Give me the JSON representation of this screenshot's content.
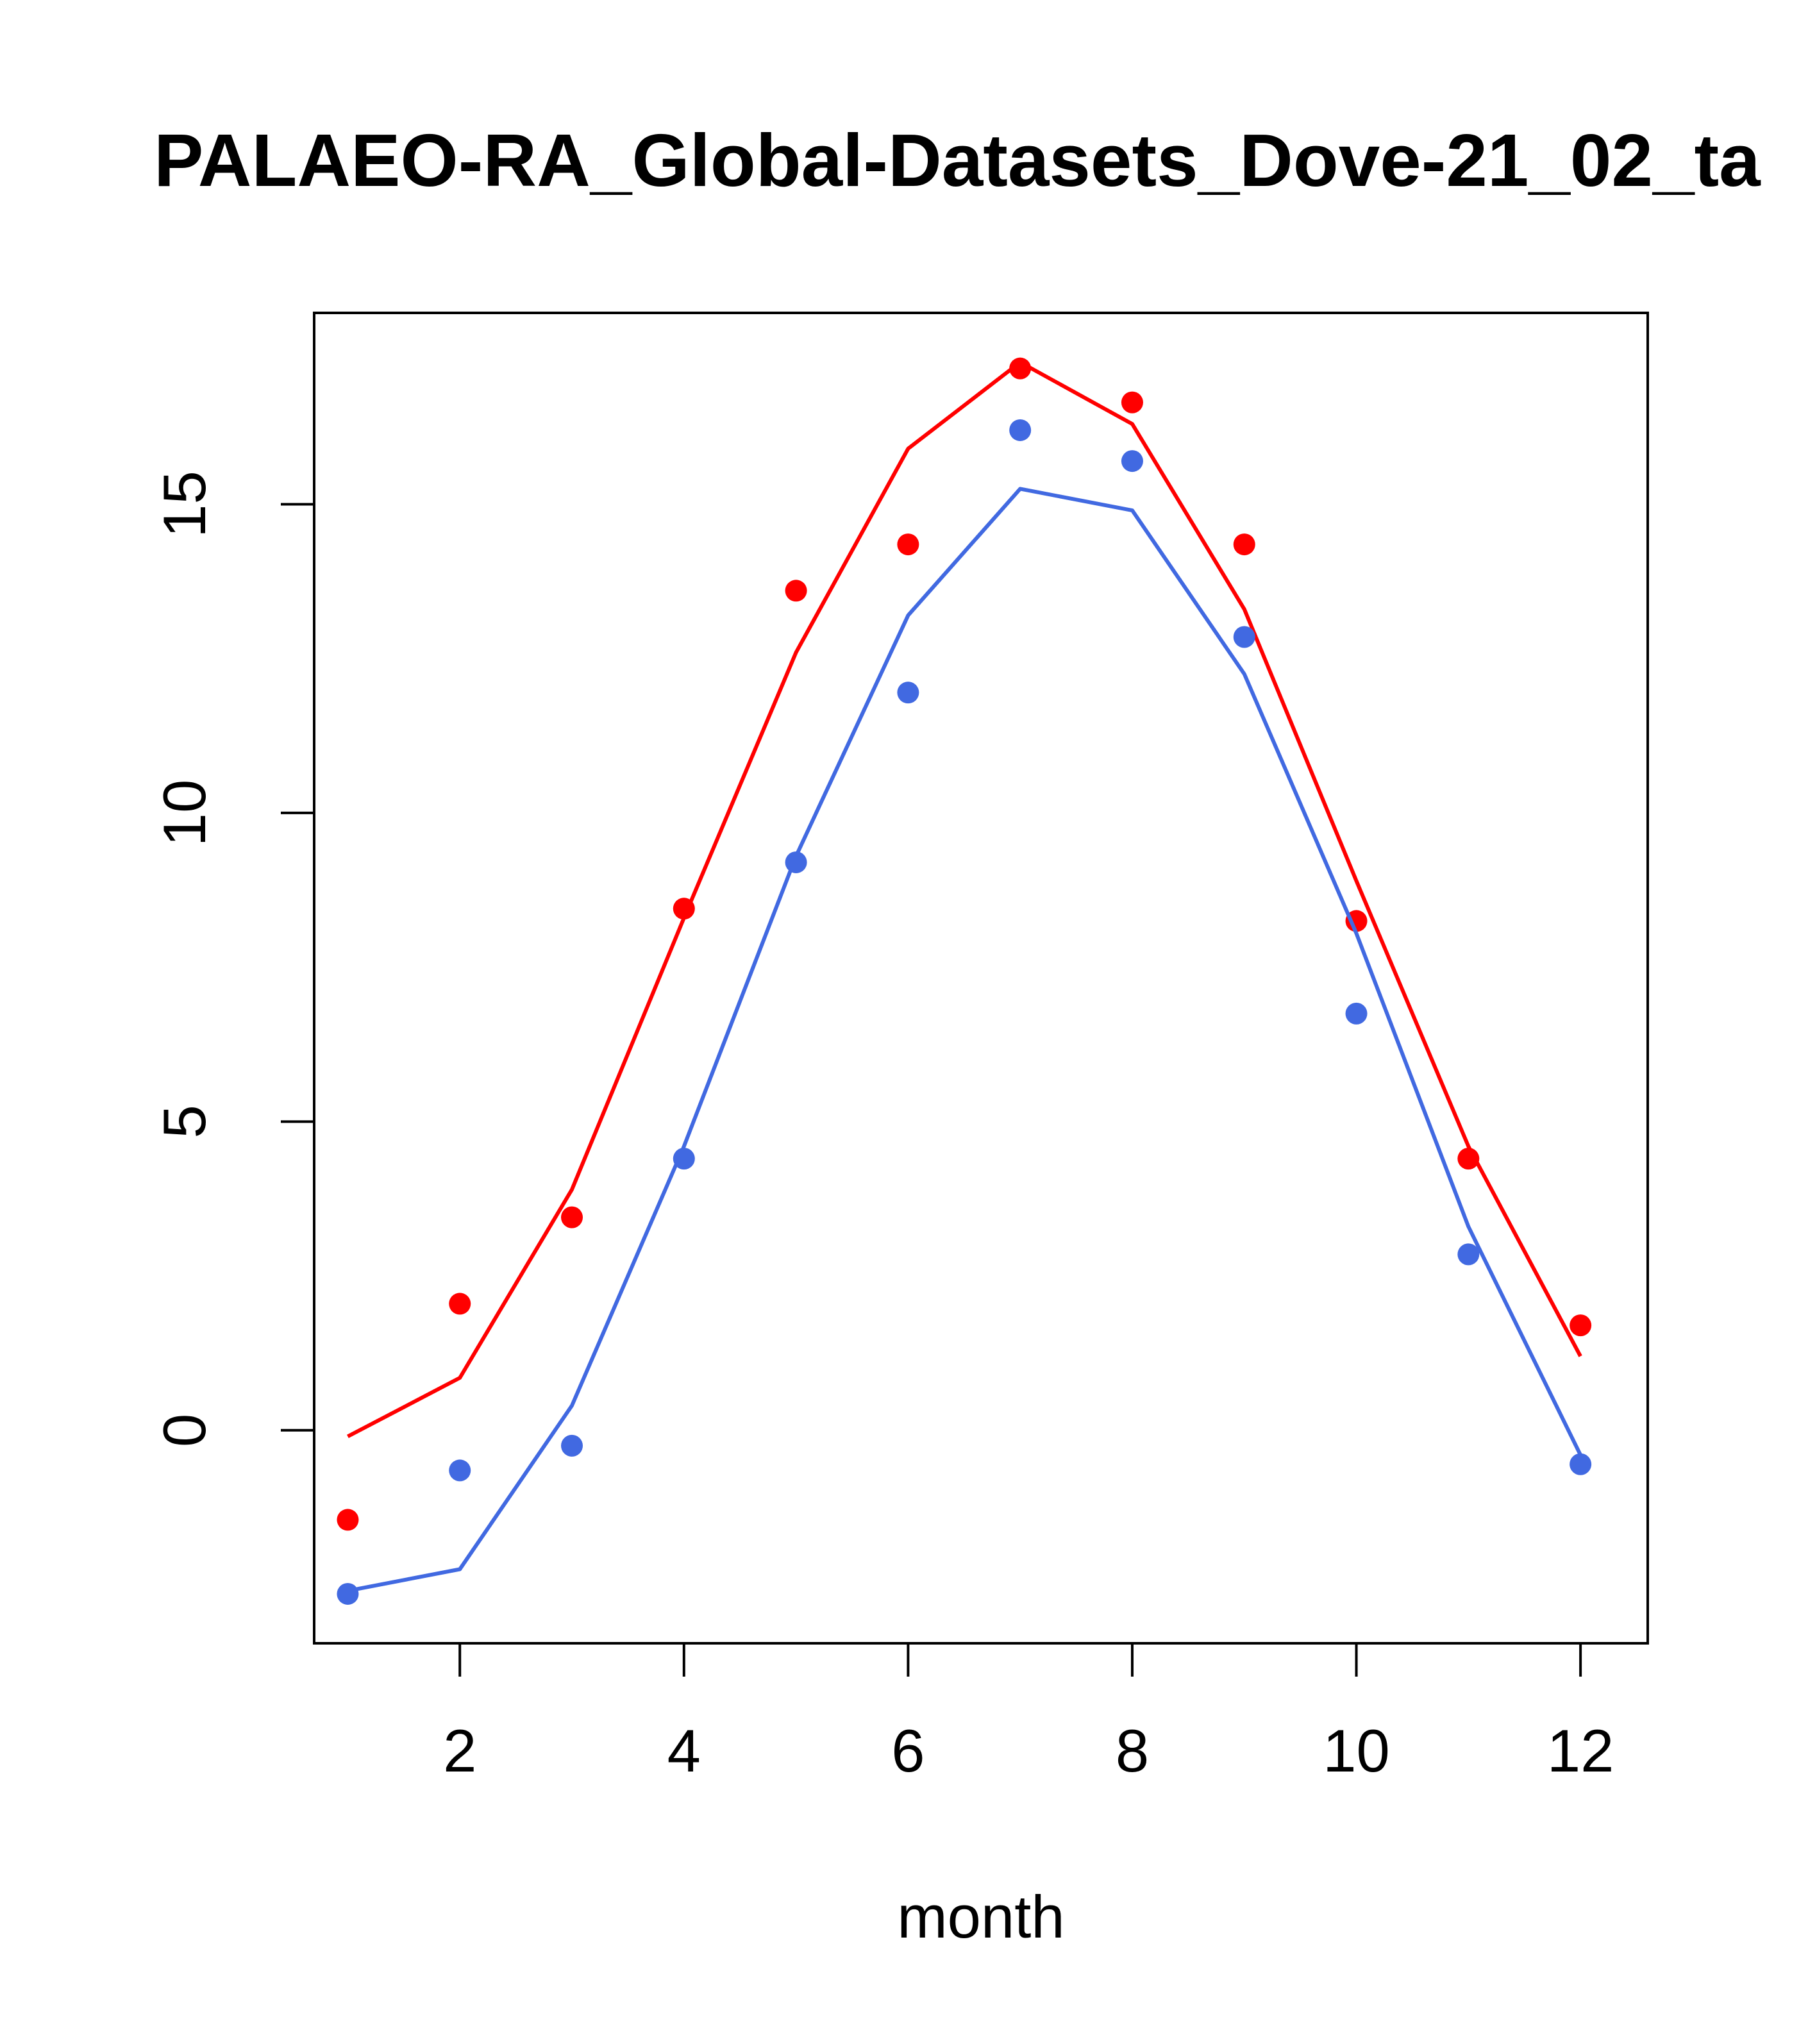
{
  "chart_data": {
    "type": "line",
    "title": "PALAEO-RA_Global-Datasets_Dove-21_02_ta",
    "xlabel": "month",
    "ylabel": "",
    "xlim": [
      0.7,
      12.6
    ],
    "ylim": [
      -3.45,
      18.1
    ],
    "x_ticks": [
      2,
      4,
      6,
      8,
      10,
      12
    ],
    "y_ticks": [
      0,
      5,
      10,
      15
    ],
    "grid": false,
    "legend": "none",
    "x": [
      1,
      2,
      3,
      4,
      5,
      6,
      7,
      8,
      9,
      10,
      11,
      12
    ],
    "series": [
      {
        "color": "#ff0000",
        "line_values": [
          -0.1,
          0.85,
          3.9,
          8.3,
          12.6,
          15.9,
          17.3,
          16.3,
          13.3,
          8.9,
          4.6,
          1.2
        ],
        "point_values": [
          -1.45,
          2.05,
          3.45,
          8.45,
          13.6,
          14.35,
          17.2,
          16.65,
          14.35,
          8.25,
          4.4,
          1.7
        ]
      },
      {
        "color": "#4169e1",
        "line_values": [
          -2.6,
          -2.25,
          0.4,
          4.6,
          9.3,
          13.2,
          15.25,
          14.9,
          12.25,
          8.05,
          3.3,
          -0.4
        ],
        "point_values": [
          -2.65,
          -0.65,
          -0.25,
          4.4,
          9.2,
          11.95,
          16.2,
          15.7,
          12.85,
          6.75,
          2.85,
          -0.55
        ]
      }
    ]
  }
}
